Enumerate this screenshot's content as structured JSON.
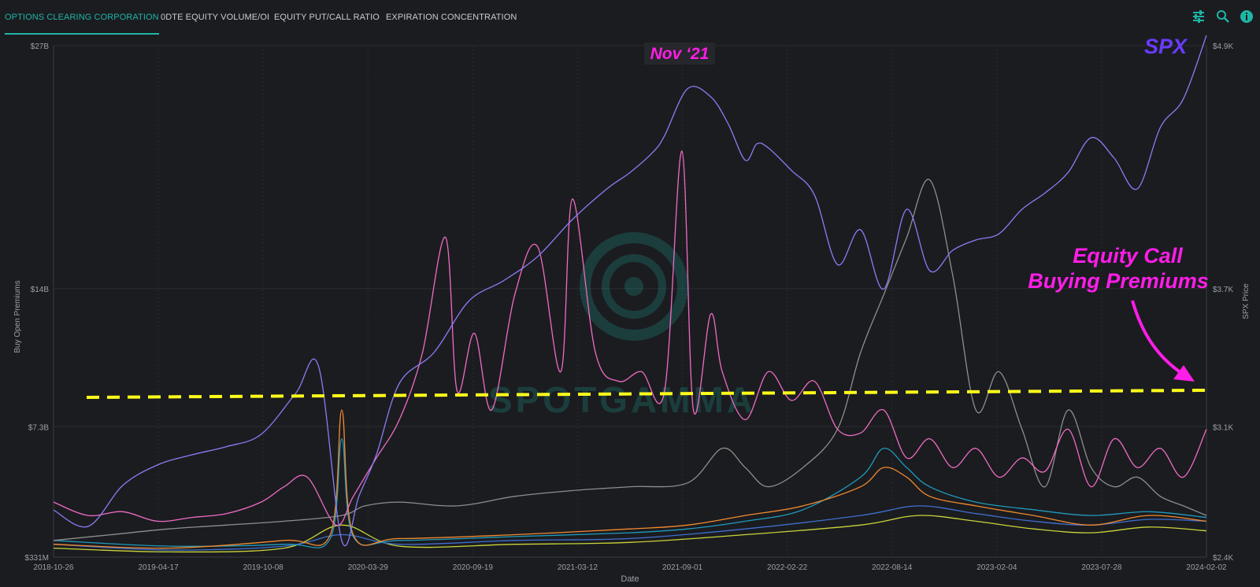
{
  "tabs": [
    {
      "label": "OPTIONS CLEARING CORPORATION",
      "active": true
    },
    {
      "label": "0DTE EQUITY VOLUME/OI",
      "active": false
    },
    {
      "label": "EQUITY PUT/CALL RATIO",
      "active": false
    },
    {
      "label": "EXPIRATION CONCENTRATION",
      "active": false
    }
  ],
  "toolbar": {
    "icons": [
      "sliders-icon",
      "search-icon",
      "info-icon"
    ]
  },
  "colors": {
    "accent": "#1fb5a6",
    "background": "#1b1c20",
    "spx": "#8b7cf6",
    "call_premiums": "#f06bc4",
    "gray": "#8e8e8e",
    "orange": "#f28a2e",
    "teal": "#1f9bbd",
    "blue": "#3f6fd0",
    "yellow_green": "#c9d53a",
    "annotation_magenta": "#ff1de8",
    "annotation_purple": "#6a3bff",
    "threshold_yellow": "#ffff1a"
  },
  "watermark": "SPOTGAMMA",
  "chart_data": {
    "type": "line",
    "xlabel": "Date",
    "ylabel_left": "Buy Open Premiums",
    "ylabel_right": "SPX Price",
    "x_ticks": [
      "2018-10-26",
      "2019-04-17",
      "2019-10-08",
      "2020-03-29",
      "2020-09-19",
      "2021-03-12",
      "2021-09-01",
      "2022-02-22",
      "2022-08-14",
      "2023-02-04",
      "2023-07-28",
      "2024-02-02"
    ],
    "y_left_ticks": [
      "$27B",
      "$14B",
      "$7.3B",
      "$331M"
    ],
    "y_right_ticks": [
      "$4.9K",
      "$3.7K",
      "$3.1K",
      "$2.4K"
    ],
    "grid": true,
    "annotations": {
      "peak_label": "Nov ‘21",
      "spx_label": "SPX",
      "call_label_line1": "Equity Call",
      "call_label_line2": "Buying Premiums"
    },
    "series": [
      {
        "name": "SPX",
        "color": "#8b7cf6",
        "axis": "right",
        "x": [
          0,
          0.03,
          0.06,
          0.09,
          0.12,
          0.15,
          0.18,
          0.21,
          0.23,
          0.25,
          0.265,
          0.28,
          0.3,
          0.33,
          0.36,
          0.39,
          0.42,
          0.45,
          0.48,
          0.5,
          0.52,
          0.53,
          0.55,
          0.57,
          0.585,
          0.6,
          0.61,
          0.62,
          0.64,
          0.66,
          0.68,
          0.7,
          0.72,
          0.74,
          0.76,
          0.78,
          0.8,
          0.82,
          0.84,
          0.86,
          0.88,
          0.9,
          0.92,
          0.94,
          0.96,
          0.98,
          1.0
        ],
        "values": [
          2630,
          2550,
          2750,
          2850,
          2900,
          2940,
          3000,
          3200,
          3330,
          2480,
          2700,
          2900,
          3250,
          3400,
          3650,
          3750,
          3870,
          4050,
          4200,
          4280,
          4380,
          4460,
          4690,
          4650,
          4520,
          4340,
          4420,
          4400,
          4290,
          4170,
          3830,
          4000,
          3710,
          4100,
          3800,
          3900,
          3950,
          3980,
          4100,
          4180,
          4280,
          4450,
          4350,
          4200,
          4500,
          4640,
          4950
        ]
      },
      {
        "name": "Equity Call Buying Premiums",
        "color": "#f06bc4",
        "axis": "left",
        "x": [
          0,
          0.03,
          0.06,
          0.09,
          0.12,
          0.15,
          0.18,
          0.2,
          0.22,
          0.245,
          0.26,
          0.28,
          0.3,
          0.32,
          0.34,
          0.35,
          0.365,
          0.38,
          0.4,
          0.42,
          0.44,
          0.45,
          0.47,
          0.49,
          0.51,
          0.53,
          0.545,
          0.555,
          0.57,
          0.58,
          0.6,
          0.62,
          0.64,
          0.66,
          0.68,
          0.7,
          0.72,
          0.74,
          0.76,
          0.78,
          0.8,
          0.82,
          0.84,
          0.86,
          0.88,
          0.9,
          0.92,
          0.94,
          0.96,
          0.98,
          1.0
        ],
        "values": [
          3.2,
          2.5,
          2.7,
          2.2,
          2.4,
          2.6,
          3.2,
          4.0,
          4.5,
          2.0,
          3.5,
          5.5,
          7.5,
          11.0,
          17.0,
          9.0,
          12.0,
          8.0,
          14.0,
          16.5,
          10.0,
          19.0,
          11.0,
          9.5,
          10.0,
          9.0,
          21.5,
          8.0,
          13.0,
          10.0,
          7.5,
          10.0,
          8.5,
          9.5,
          7.0,
          6.8,
          8.0,
          5.5,
          6.5,
          5.0,
          6.0,
          4.5,
          5.5,
          4.8,
          7.0,
          4.0,
          6.5,
          5.0,
          6.0,
          4.5,
          7.0
        ]
      },
      {
        "name": "",
        "color": "#8e8e8e",
        "axis": "left",
        "x": [
          0,
          0.05,
          0.1,
          0.15,
          0.2,
          0.25,
          0.27,
          0.3,
          0.35,
          0.4,
          0.45,
          0.5,
          0.55,
          0.58,
          0.6,
          0.62,
          0.65,
          0.68,
          0.7,
          0.72,
          0.74,
          0.76,
          0.78,
          0.8,
          0.82,
          0.84,
          0.86,
          0.88,
          0.9,
          0.92,
          0.94,
          0.96,
          0.98,
          1.0
        ],
        "values": [
          1.2,
          1.5,
          1.8,
          2.0,
          2.2,
          2.5,
          3.0,
          3.2,
          3.0,
          3.5,
          3.8,
          4.0,
          4.2,
          6.0,
          5.0,
          4.0,
          5.0,
          7.0,
          11.0,
          14.0,
          17.0,
          20.0,
          15.0,
          8.0,
          10.0,
          7.0,
          4.0,
          8.0,
          5.0,
          4.0,
          4.5,
          3.5,
          3.0,
          2.5
        ]
      },
      {
        "name": "",
        "color": "#f28a2e",
        "axis": "left",
        "x": [
          0,
          0.1,
          0.2,
          0.24,
          0.25,
          0.26,
          0.3,
          0.4,
          0.5,
          0.55,
          0.6,
          0.65,
          0.7,
          0.72,
          0.74,
          0.76,
          0.8,
          0.85,
          0.9,
          0.95,
          1.0
        ],
        "values": [
          1.0,
          0.8,
          1.2,
          1.5,
          8.0,
          1.5,
          1.3,
          1.5,
          1.8,
          2.0,
          2.5,
          3.0,
          4.0,
          5.0,
          4.5,
          3.5,
          3.0,
          2.5,
          2.0,
          2.5,
          2.2
        ]
      },
      {
        "name": "",
        "color": "#1f9bbd",
        "axis": "left",
        "x": [
          0,
          0.1,
          0.2,
          0.24,
          0.25,
          0.26,
          0.3,
          0.4,
          0.5,
          0.55,
          0.6,
          0.65,
          0.7,
          0.72,
          0.74,
          0.76,
          0.8,
          0.85,
          0.9,
          0.95,
          1.0
        ],
        "values": [
          1.2,
          0.9,
          1.0,
          1.3,
          6.5,
          1.4,
          1.2,
          1.4,
          1.6,
          1.8,
          2.2,
          2.8,
          4.5,
          6.0,
          5.0,
          4.0,
          3.2,
          2.8,
          2.5,
          2.7,
          2.4
        ]
      },
      {
        "name": "",
        "color": "#3f6fd0",
        "axis": "left",
        "x": [
          0,
          0.1,
          0.2,
          0.25,
          0.3,
          0.4,
          0.5,
          0.6,
          0.7,
          0.75,
          0.8,
          0.85,
          0.9,
          0.95,
          1.0
        ],
        "values": [
          1.0,
          0.7,
          0.9,
          1.5,
          1.0,
          1.2,
          1.3,
          1.8,
          2.5,
          3.0,
          2.6,
          2.2,
          2.0,
          2.3,
          2.2
        ]
      },
      {
        "name": "",
        "color": "#c9d53a",
        "axis": "left",
        "x": [
          0,
          0.1,
          0.2,
          0.25,
          0.3,
          0.4,
          0.5,
          0.6,
          0.7,
          0.75,
          0.8,
          0.85,
          0.9,
          0.95,
          1.0
        ],
        "values": [
          0.8,
          0.6,
          0.8,
          2.0,
          0.9,
          1.0,
          1.1,
          1.5,
          2.0,
          2.5,
          2.2,
          1.8,
          1.6,
          1.9,
          1.7
        ]
      }
    ]
  }
}
